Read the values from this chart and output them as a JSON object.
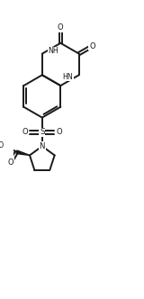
{
  "bg_color": "#ffffff",
  "line_color": "#1a1a1a",
  "lw": 1.4,
  "xlim": [
    0,
    8
  ],
  "ylim": [
    0,
    18
  ],
  "figsize": [
    1.6,
    3.32
  ],
  "dpi": 100
}
